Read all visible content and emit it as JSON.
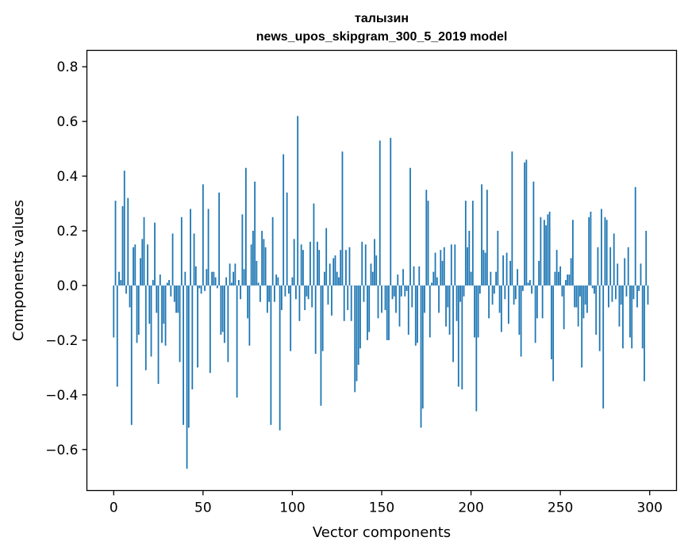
{
  "chart_data": {
    "type": "bar",
    "title_line1": "талызин",
    "title_line2": "news_upos_skipgram_300_5_2019 model",
    "xlabel": "Vector components",
    "ylabel": "Components values",
    "xlim": [
      -15,
      315
    ],
    "ylim": [
      -0.75,
      0.86
    ],
    "xticks": [
      0,
      50,
      100,
      150,
      200,
      250,
      300
    ],
    "xtick_labels": [
      "0",
      "50",
      "100",
      "150",
      "200",
      "250",
      "300"
    ],
    "yticks": [
      -0.6,
      -0.4,
      -0.2,
      0.0,
      0.2,
      0.4,
      0.6,
      0.8
    ],
    "ytick_labels": [
      "−0.6",
      "−0.4",
      "−0.2",
      "0.0",
      "0.2",
      "0.4",
      "0.6",
      "0.8"
    ],
    "bar_color": "#1f77b4",
    "x": "0..299",
    "values": [
      -0.19,
      0.31,
      -0.37,
      0.05,
      0.02,
      0.29,
      0.42,
      -0.03,
      0.32,
      -0.08,
      -0.51,
      0.14,
      0.15,
      -0.21,
      -0.18,
      0.1,
      0.17,
      0.25,
      -0.31,
      0.15,
      -0.14,
      -0.26,
      0.02,
      0.23,
      -0.1,
      -0.36,
      0.04,
      -0.21,
      -0.14,
      -0.22,
      0.01,
      0.02,
      -0.04,
      0.19,
      -0.06,
      -0.1,
      -0.1,
      -0.28,
      0.25,
      -0.51,
      0.05,
      -0.67,
      -0.52,
      0.28,
      -0.38,
      0.19,
      0.07,
      -0.3,
      -0.01,
      -0.03,
      0.37,
      -0.02,
      0.06,
      0.28,
      -0.32,
      0.05,
      0.05,
      0.03,
      -0.01,
      0.34,
      -0.18,
      -0.17,
      -0.21,
      0.03,
      -0.28,
      0.08,
      0.01,
      0.05,
      0.08,
      -0.41,
      0.02,
      -0.05,
      0.26,
      0.06,
      0.43,
      -0.12,
      -0.22,
      0.15,
      0.2,
      0.38,
      0.09,
      0.01,
      -0.06,
      0.2,
      0.17,
      0.14,
      -0.1,
      -0.06,
      -0.51,
      0.25,
      -0.06,
      0.04,
      0.03,
      -0.53,
      -0.09,
      0.48,
      -0.04,
      0.34,
      -0.03,
      -0.24,
      0.03,
      0.17,
      -0.05,
      0.62,
      -0.13,
      0.15,
      0.13,
      -0.09,
      -0.04,
      -0.05,
      0.16,
      -0.08,
      0.3,
      -0.25,
      0.16,
      0.13,
      -0.44,
      -0.24,
      0.05,
      0.21,
      -0.07,
      0.08,
      -0.11,
      0.1,
      0.11,
      0.05,
      0.03,
      0.13,
      0.49,
      -0.13,
      0.13,
      -0.09,
      0.14,
      -0.13,
      0.0,
      -0.39,
      -0.35,
      -0.29,
      -0.23,
      0.16,
      -0.06,
      0.15,
      -0.2,
      -0.17,
      0.08,
      0.05,
      0.17,
      0.11,
      -0.12,
      0.53,
      -0.1,
      0.0,
      -0.09,
      -0.2,
      -0.2,
      0.54,
      -0.05,
      -0.04,
      -0.1,
      0.04,
      -0.15,
      -0.04,
      0.06,
      -0.04,
      -0.02,
      -0.18,
      0.43,
      -0.08,
      0.07,
      -0.22,
      -0.21,
      0.07,
      -0.52,
      -0.45,
      -0.1,
      0.35,
      0.31,
      -0.19,
      0.01,
      0.05,
      0.12,
      0.03,
      -0.1,
      0.13,
      0.09,
      0.14,
      -0.15,
      -0.08,
      -0.18,
      0.15,
      -0.28,
      0.15,
      -0.13,
      -0.37,
      -0.06,
      -0.38,
      -0.04,
      0.31,
      0.14,
      0.2,
      0.05,
      0.31,
      -0.19,
      -0.46,
      -0.19,
      -0.03,
      0.37,
      0.13,
      0.12,
      0.35,
      -0.12,
      0.05,
      -0.07,
      -0.03,
      0.05,
      0.2,
      -0.1,
      -0.17,
      0.11,
      -0.05,
      0.12,
      -0.14,
      0.09,
      0.49,
      -0.07,
      -0.05,
      0.06,
      -0.18,
      -0.26,
      -0.02,
      0.45,
      0.46,
      0.01,
      0.02,
      -0.03,
      0.38,
      -0.21,
      -0.12,
      0.09,
      0.25,
      -0.12,
      0.24,
      0.22,
      0.26,
      0.27,
      -0.27,
      -0.35,
      0.05,
      0.13,
      0.05,
      0.07,
      -0.04,
      -0.16,
      0.02,
      0.04,
      0.04,
      0.1,
      0.24,
      -0.08,
      -0.08,
      -0.15,
      -0.04,
      -0.3,
      -0.12,
      -0.07,
      -0.1,
      0.25,
      0.27,
      -0.01,
      -0.03,
      -0.18,
      0.14,
      -0.24,
      0.28,
      -0.45,
      0.25,
      0.24,
      -0.08,
      0.14,
      -0.06,
      0.19,
      -0.05,
      0.08,
      -0.15,
      -0.07,
      -0.23,
      0.1,
      -0.04,
      0.14,
      -0.19,
      -0.23,
      -0.05,
      0.36,
      -0.08,
      -0.02,
      0.08,
      -0.23,
      -0.35,
      0.2,
      -0.07
    ]
  }
}
